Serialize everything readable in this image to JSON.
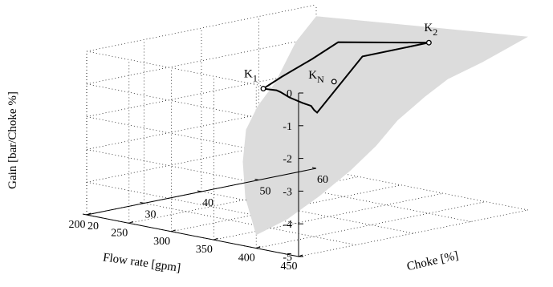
{
  "chart_data": {
    "type": "surface3d",
    "title": "",
    "xlabel": "Choke [%]",
    "ylabel": "Flow rate [gpm]",
    "zlabel": "Gain [bar/Choke %]",
    "xlim": [
      20,
      60
    ],
    "ylim": [
      200,
      450
    ],
    "zlim": [
      -5,
      0
    ],
    "x_ticks": [
      20,
      30,
      40,
      50,
      60
    ],
    "y_ticks": [
      200,
      250,
      300,
      350,
      400,
      450
    ],
    "z_ticks": [
      0,
      -1,
      -2,
      -3,
      -4,
      -5
    ],
    "grid": true,
    "surface_color": "#dcdcdc",
    "boundary_color": "#000000",
    "points": [
      {
        "label": "K",
        "subscript": "N",
        "x": 38,
        "y": 370,
        "z": -0.7
      },
      {
        "label": "K",
        "subscript": "1",
        "x": 36,
        "y": 300,
        "z": -1.2
      },
      {
        "label": "K",
        "subscript": "2",
        "x": 56,
        "y": 360,
        "z": -0.2
      }
    ]
  }
}
